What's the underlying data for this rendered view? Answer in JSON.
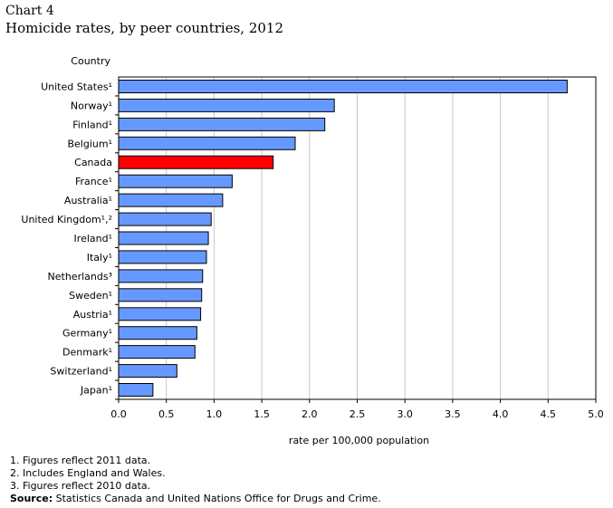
{
  "header": {
    "chart_number": "Chart 4",
    "title": "Homicide rates, by peer countries, 2012"
  },
  "chart_data": {
    "type": "bar",
    "orientation": "horizontal",
    "title": "Homicide rates, by peer countries, 2012",
    "ylabel": "Country",
    "xlabel": "rate per 100,000 population",
    "xlim": [
      0,
      5
    ],
    "xticks": [
      "0.0",
      "0.5",
      "1.0",
      "1.5",
      "2.0",
      "2.5",
      "3.0",
      "3.5",
      "4.0",
      "4.5",
      "5.0"
    ],
    "grid": true,
    "categories": [
      "United States¹",
      "Norway¹",
      "Finland¹",
      "Belgium¹",
      "Canada",
      "France¹",
      "Australia¹",
      "United Kingdom¹,²",
      "Ireland¹",
      "Italy¹",
      "Netherlands³",
      "Sweden¹",
      "Austria¹",
      "Germany¹",
      "Denmark¹",
      "Switzerland¹",
      "Japan¹"
    ],
    "values": [
      4.7,
      2.26,
      2.16,
      1.85,
      1.62,
      1.19,
      1.09,
      0.97,
      0.94,
      0.92,
      0.88,
      0.87,
      0.86,
      0.82,
      0.8,
      0.61,
      0.36
    ],
    "colors": {
      "default": "#6699ff",
      "highlight": "#ff0000",
      "border": "#000000",
      "grid": "#c8c8c8"
    },
    "highlight_category": "Canada"
  },
  "notes": [
    "1. Figures reflect 2011 data.",
    "2. Includes England and Wales.",
    "3. Figures reflect 2010 data."
  ],
  "source": {
    "label": "Source:",
    "text": " Statistics Canada and United Nations Office for Drugs and Crime."
  }
}
